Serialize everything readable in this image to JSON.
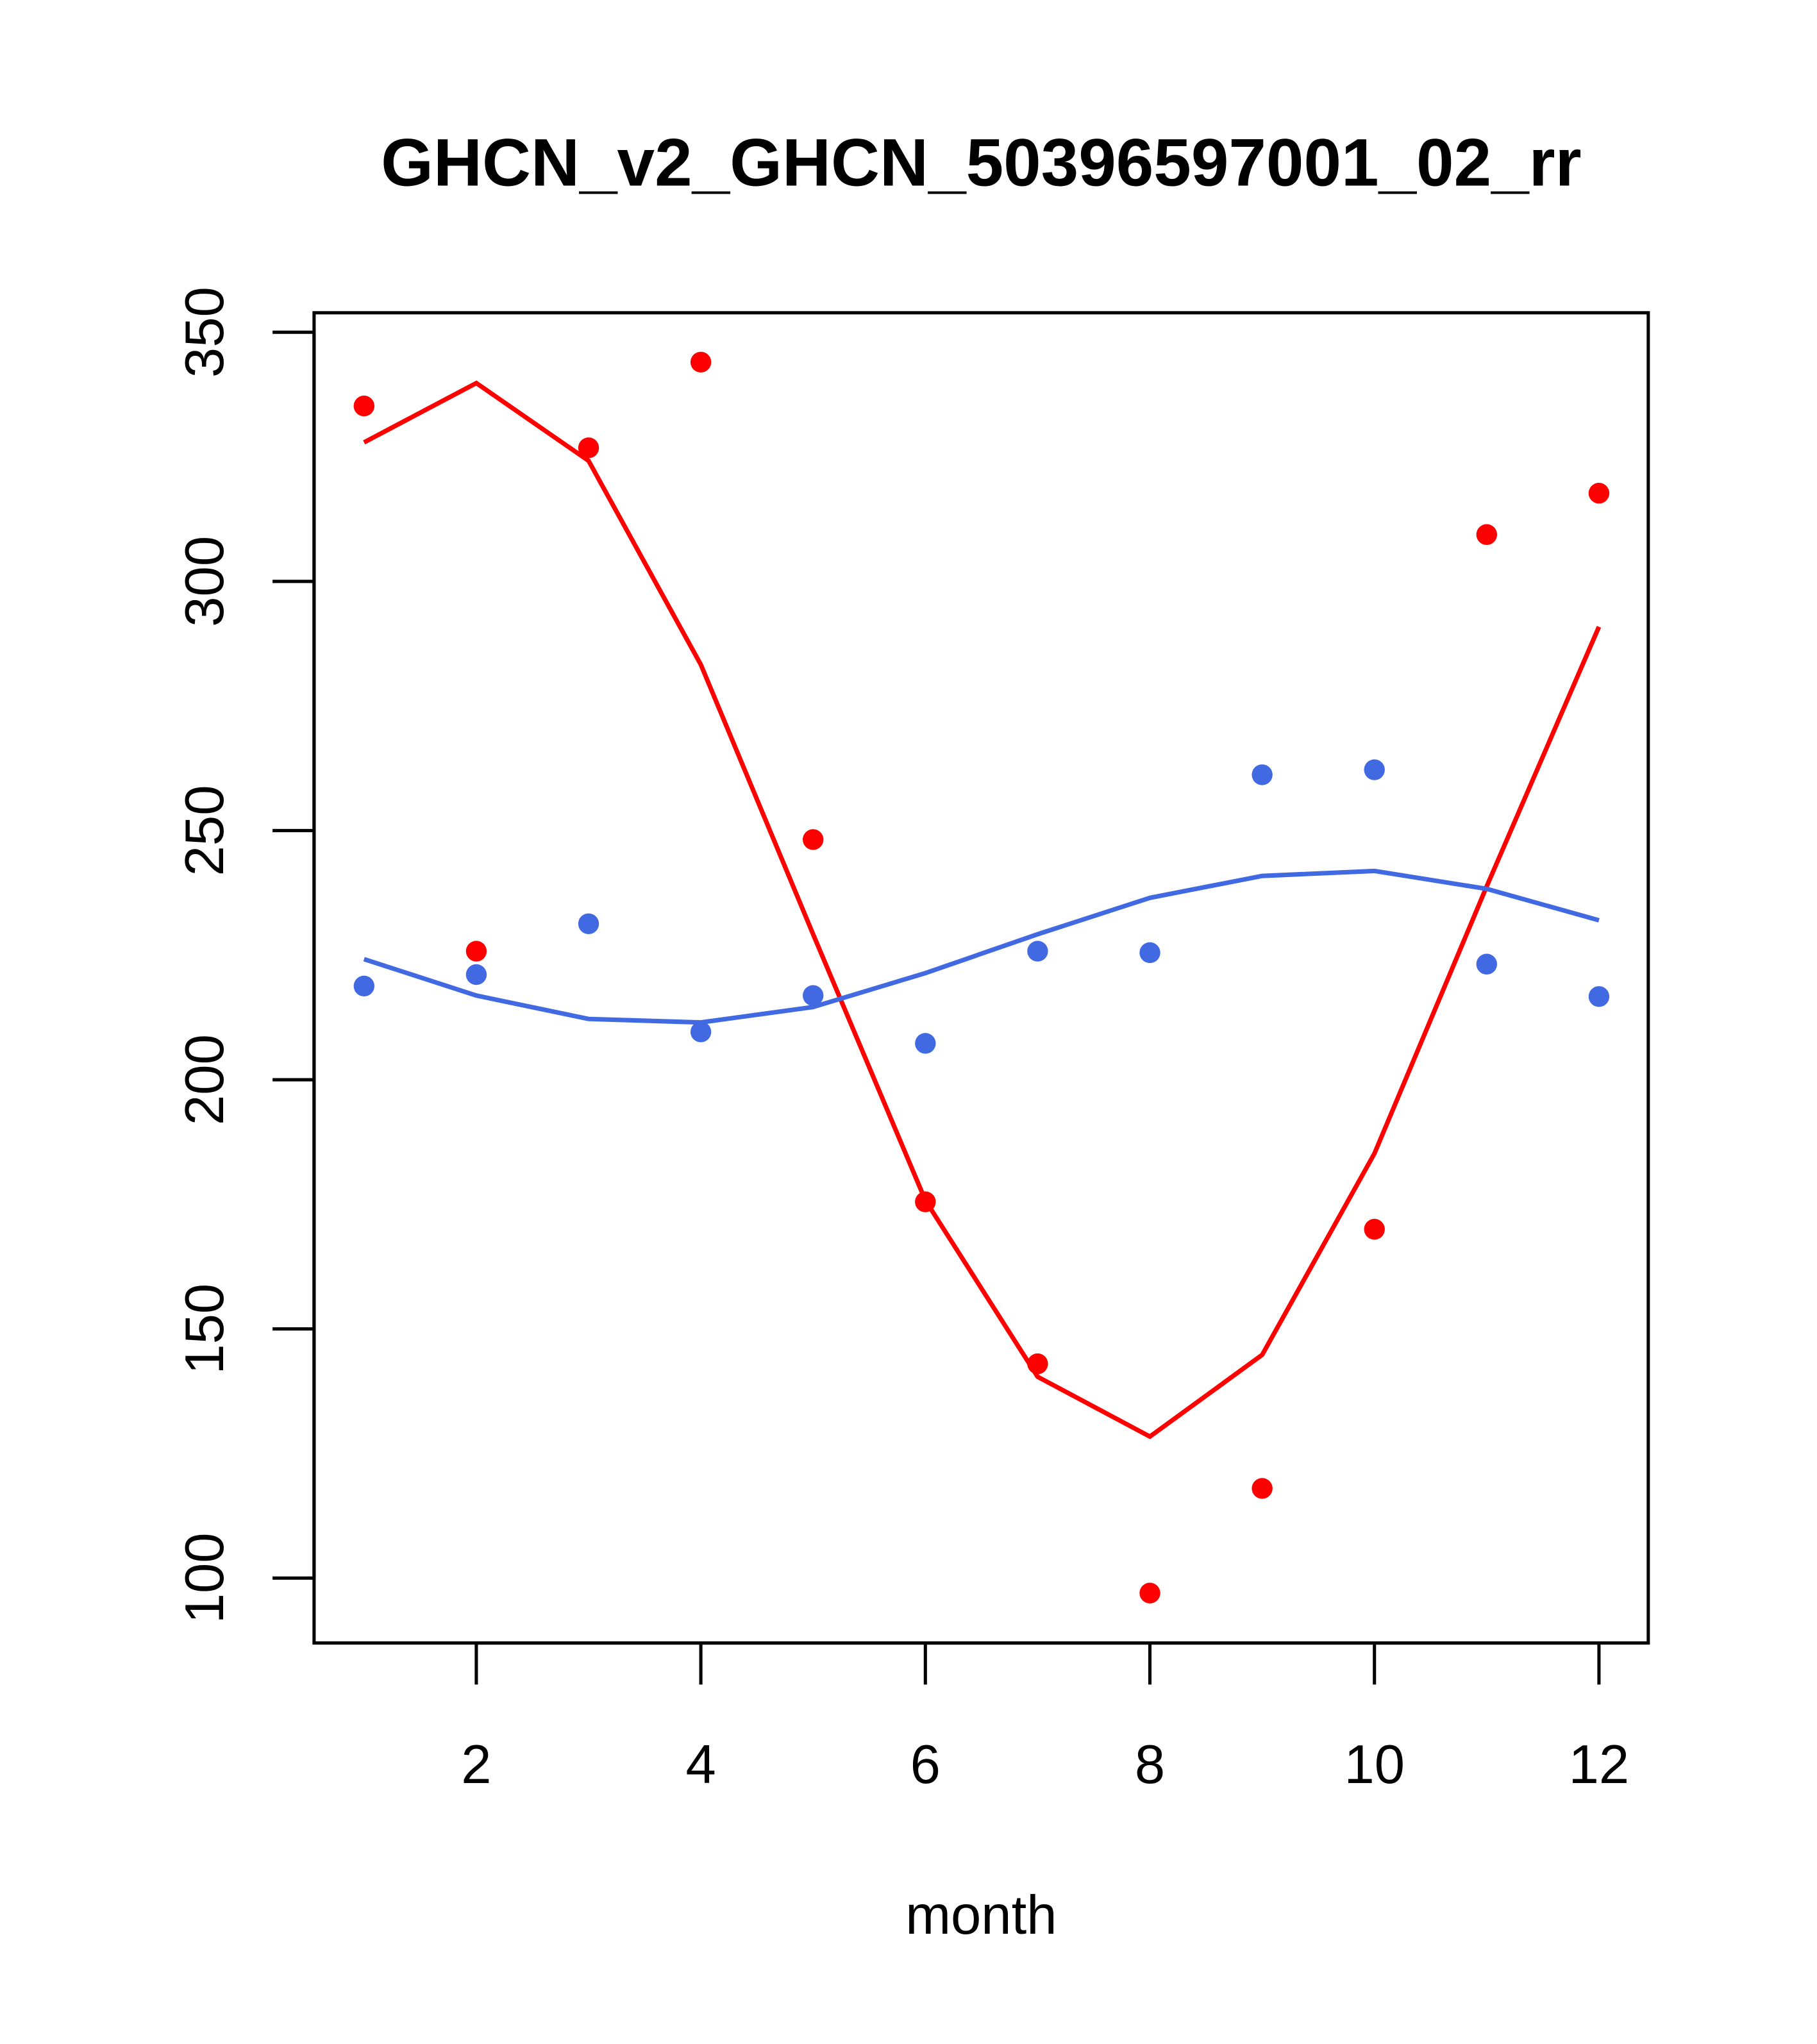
{
  "chart_data": {
    "type": "scatter",
    "title": "GHCN_v2_GHCN_50396597001_02_rr",
    "xlabel": "month",
    "ylabel": "",
    "xlim": [
      0.56,
      12.44
    ],
    "ylim": [
      87,
      354
    ],
    "x_ticks": [
      2,
      4,
      6,
      8,
      10,
      12
    ],
    "y_ticks": [
      100,
      150,
      200,
      250,
      300,
      350
    ],
    "x": [
      1,
      2,
      3,
      4,
      5,
      6,
      7,
      8,
      9,
      10,
      11,
      12
    ],
    "series": [
      {
        "name": "red points",
        "kind": "points",
        "color": "#ff0000",
        "values": [
          335.2,
          225.8,
          326.8,
          344.0,
          248.2,
          175.5,
          143.0,
          97.0,
          118.0,
          170.0,
          309.4,
          317.7
        ]
      },
      {
        "name": "red fit",
        "kind": "line",
        "color": "#ff0000",
        "values": [
          327.9,
          339.8,
          324.2,
          283.3,
          229.2,
          175.8,
          140.4,
          128.4,
          144.8,
          185.2,
          238.8,
          290.9
        ]
      },
      {
        "name": "blue points",
        "kind": "points",
        "color": "#4169e1",
        "values": [
          218.8,
          221.1,
          231.3,
          209.6,
          216.9,
          207.3,
          225.8,
          225.5,
          261.2,
          262.2,
          223.2,
          216.7
        ]
      },
      {
        "name": "blue fit",
        "kind": "line",
        "color": "#4169e1",
        "values": [
          224.2,
          216.9,
          212.2,
          211.5,
          214.6,
          221.4,
          229.2,
          236.5,
          240.9,
          241.9,
          238.3,
          232.0
        ]
      }
    ],
    "grid": false,
    "legend": "none"
  }
}
